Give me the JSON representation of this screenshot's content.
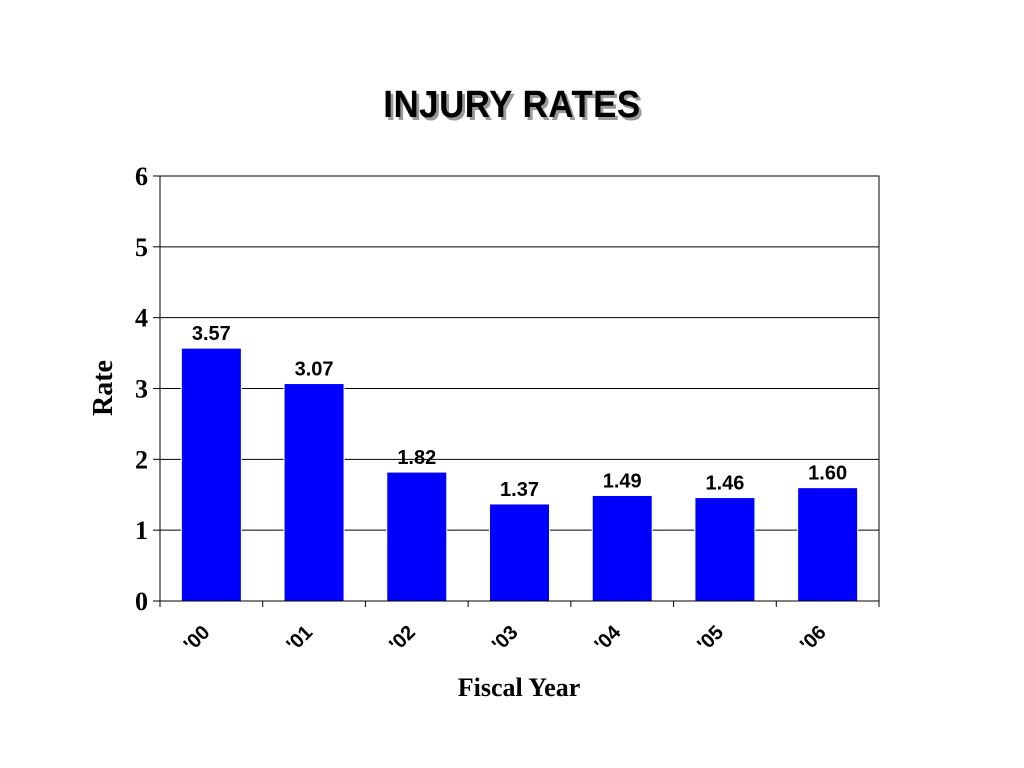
{
  "chart_data": {
    "type": "bar",
    "title": "INJURY RATES",
    "xlabel": "Fiscal Year",
    "ylabel": "Rate",
    "categories": [
      "'00",
      "'01",
      "'02",
      "'03",
      "'04",
      "'05",
      "'06"
    ],
    "values": [
      3.57,
      3.07,
      1.82,
      1.37,
      1.49,
      1.46,
      1.6
    ],
    "value_labels": [
      "3.57",
      "3.07",
      "1.82",
      "1.37",
      "1.49",
      "1.46",
      "1.60"
    ],
    "ylim": [
      0,
      6
    ],
    "yticks": [
      0,
      1,
      2,
      3,
      4,
      5,
      6
    ],
    "grid": true,
    "legend": "none",
    "bar_color": "#0000ff"
  }
}
